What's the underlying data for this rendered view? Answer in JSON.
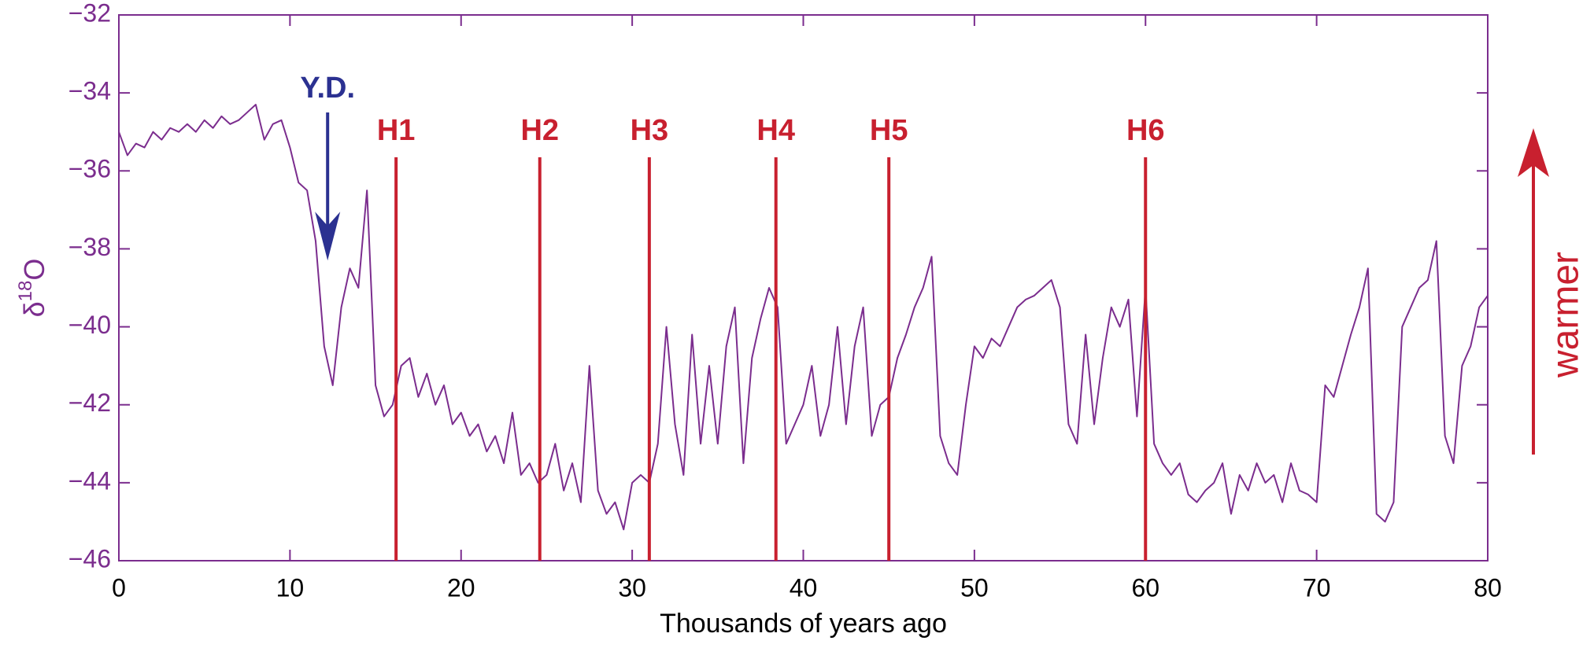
{
  "chart_data": {
    "type": "line",
    "xlabel": "Thousands of years ago",
    "ylabel_parts": [
      "δ",
      "18",
      "O"
    ],
    "xlim": [
      0,
      80
    ],
    "xticks": [
      0,
      10,
      20,
      30,
      40,
      50,
      60,
      70,
      80
    ],
    "ylim": [
      -46,
      -32
    ],
    "yticks": [
      {
        "value": -46,
        "label": "−46"
      },
      {
        "value": -44,
        "label": "−44"
      },
      {
        "value": -42,
        "label": "−42"
      },
      {
        "value": -40,
        "label": "−40"
      },
      {
        "value": -38,
        "label": "−38"
      },
      {
        "value": -36,
        "label": "−36"
      },
      {
        "value": -34,
        "label": "−34"
      },
      {
        "value": -32,
        "label": "−32"
      }
    ],
    "color": "#7b2d8e",
    "x": [
      0,
      0.5,
      1,
      1.5,
      2,
      2.5,
      3,
      3.5,
      4,
      4.5,
      5,
      5.5,
      6,
      6.5,
      7,
      7.5,
      8,
      8.5,
      9,
      9.5,
      10,
      10.5,
      11,
      11.5,
      12,
      12.5,
      13,
      13.5,
      14,
      14.5,
      15,
      15.5,
      16,
      16.5,
      17,
      17.5,
      18,
      18.5,
      19,
      19.5,
      20,
      20.5,
      21,
      21.5,
      22,
      22.5,
      23,
      23.5,
      24,
      24.5,
      25,
      25.5,
      26,
      26.5,
      27,
      27.5,
      28,
      28.5,
      29,
      29.5,
      30,
      30.5,
      31,
      31.5,
      32,
      32.5,
      33,
      33.5,
      34,
      34.5,
      35,
      35.5,
      36,
      36.5,
      37,
      37.5,
      38,
      38.5,
      39,
      39.5,
      40,
      40.5,
      41,
      41.5,
      42,
      42.5,
      43,
      43.5,
      44,
      44.5,
      45,
      45.5,
      46,
      46.5,
      47,
      47.5,
      48,
      48.5,
      49,
      49.5,
      50,
      50.5,
      51,
      51.5,
      52,
      52.5,
      53,
      53.5,
      54,
      54.5,
      55,
      55.5,
      56,
      56.5,
      57,
      57.5,
      58,
      58.5,
      59,
      59.5,
      60,
      60.5,
      61,
      61.5,
      62,
      62.5,
      63,
      63.5,
      64,
      64.5,
      65,
      65.5,
      66,
      66.5,
      67,
      67.5,
      68,
      68.5,
      69,
      69.5,
      70,
      70.5,
      71,
      71.5,
      72,
      72.5,
      73,
      73.5,
      74,
      74.5,
      75,
      75.5,
      76,
      76.5,
      77,
      77.5,
      78,
      78.5,
      79,
      79.5,
      80
    ],
    "values": [
      -35.0,
      -35.6,
      -35.3,
      -35.4,
      -35.0,
      -35.2,
      -34.9,
      -35.0,
      -34.8,
      -35.0,
      -34.7,
      -34.9,
      -34.6,
      -34.8,
      -34.7,
      -34.5,
      -34.3,
      -35.2,
      -34.8,
      -34.7,
      -35.4,
      -36.3,
      -36.5,
      -37.8,
      -40.5,
      -41.5,
      -39.5,
      -38.5,
      -39.0,
      -36.5,
      -41.5,
      -42.3,
      -42.0,
      -41.0,
      -40.8,
      -41.8,
      -41.2,
      -42.0,
      -41.5,
      -42.5,
      -42.2,
      -42.8,
      -42.5,
      -43.2,
      -42.8,
      -43.5,
      -42.2,
      -43.8,
      -43.5,
      -44.0,
      -43.8,
      -43.0,
      -44.2,
      -43.5,
      -44.5,
      -41.0,
      -44.2,
      -44.8,
      -44.5,
      -45.2,
      -44.0,
      -43.8,
      -44.0,
      -43.0,
      -40.0,
      -42.5,
      -43.8,
      -40.2,
      -43.0,
      -41.0,
      -43.0,
      -40.5,
      -39.5,
      -43.5,
      -40.8,
      -39.8,
      -39.0,
      -39.5,
      -43.0,
      -42.5,
      -42.0,
      -41.0,
      -42.8,
      -42.0,
      -40.0,
      -42.5,
      -40.5,
      -39.5,
      -42.8,
      -42.0,
      -41.8,
      -40.8,
      -40.2,
      -39.5,
      -39.0,
      -38.2,
      -42.8,
      -43.5,
      -43.8,
      -42.0,
      -40.5,
      -40.8,
      -40.3,
      -40.5,
      -40.0,
      -39.5,
      -39.3,
      -39.2,
      -39.0,
      -38.8,
      -39.5,
      -42.5,
      -43.0,
      -40.2,
      -42.5,
      -40.8,
      -39.5,
      -40.0,
      -39.3,
      -42.3,
      -39.0,
      -43.0,
      -43.5,
      -43.8,
      -43.5,
      -44.3,
      -44.5,
      -44.2,
      -44.0,
      -43.5,
      -44.8,
      -43.8,
      -44.2,
      -43.5,
      -44.0,
      -43.8,
      -44.5,
      -43.5,
      -44.2,
      -44.3,
      -44.5,
      -41.5,
      -41.8,
      -41.0,
      -40.2,
      -39.5,
      -38.5,
      -44.8,
      -45.0,
      -44.5,
      -40.0,
      -39.5,
      -39.0,
      -38.8,
      -37.8,
      -42.8,
      -43.5,
      -41.0,
      -40.5,
      -39.5,
      -39.2
    ],
    "events": [
      {
        "text": "H1",
        "x": 16.2
      },
      {
        "text": "H2",
        "x": 24.6
      },
      {
        "text": "H3",
        "x": 31
      },
      {
        "text": "H4",
        "x": 38.4
      },
      {
        "text": "H5",
        "x": 45
      },
      {
        "text": "H6",
        "x": 60
      }
    ],
    "events_color": "#c8202f",
    "yd": {
      "text": "Y.D.",
      "x": 12.2,
      "y": -38.3,
      "color": "#2b3191"
    },
    "side_label": "warmer"
  }
}
